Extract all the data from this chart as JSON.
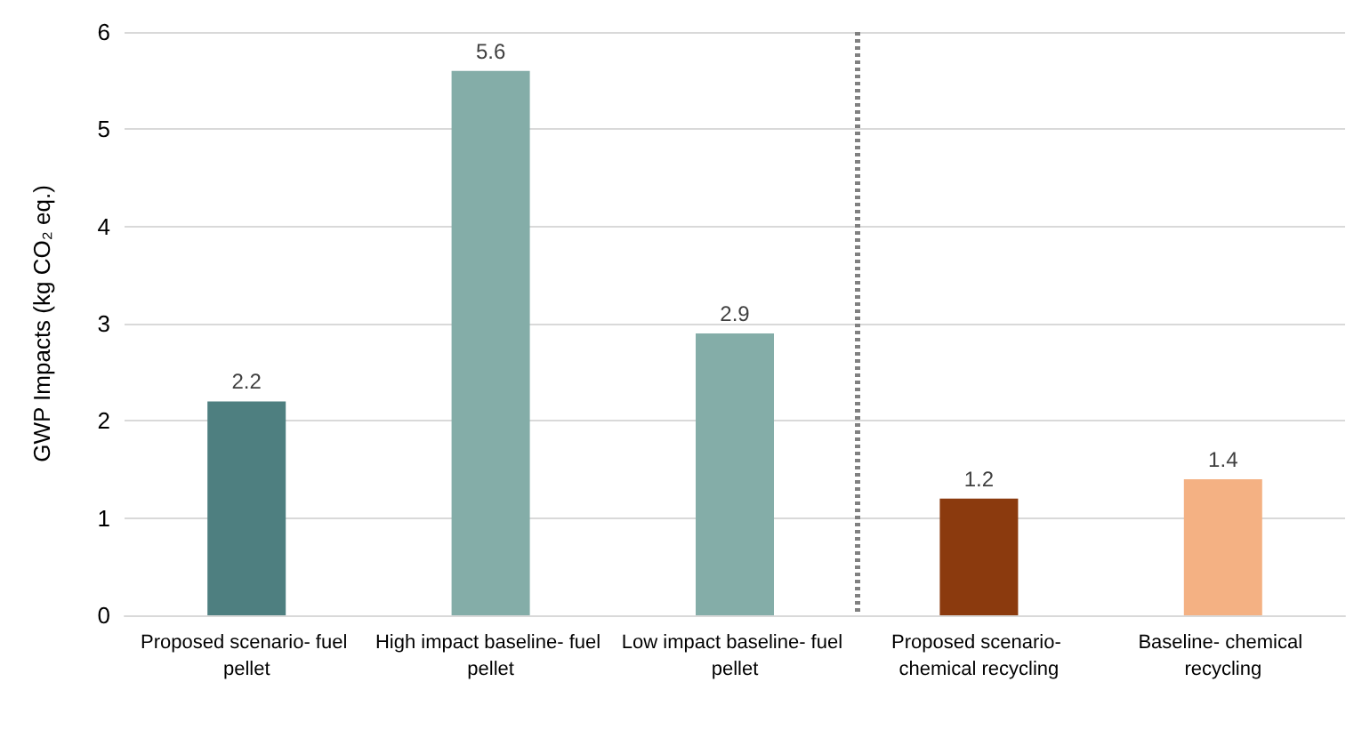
{
  "chart_data": {
    "type": "bar",
    "ylabel": "GWP Impacts (kg CO₂ eq.)",
    "categories": [
      "Proposed scenario- fuel pellet",
      "High impact baseline- fuel pellet",
      "Low impact baseline- fuel pellet",
      "Proposed scenario- chemical recycling",
      "Baseline- chemical recycling"
    ],
    "values": [
      2.2,
      5.6,
      2.9,
      1.2,
      1.4
    ],
    "colors": [
      "#4e7f80",
      "#84ada8",
      "#84ada8",
      "#8b3a0e",
      "#f4b183"
    ],
    "ylim": [
      0,
      6
    ],
    "yticks": [
      0,
      1,
      2,
      3,
      4,
      5,
      6
    ],
    "grid": "y",
    "data_labels": true
  }
}
